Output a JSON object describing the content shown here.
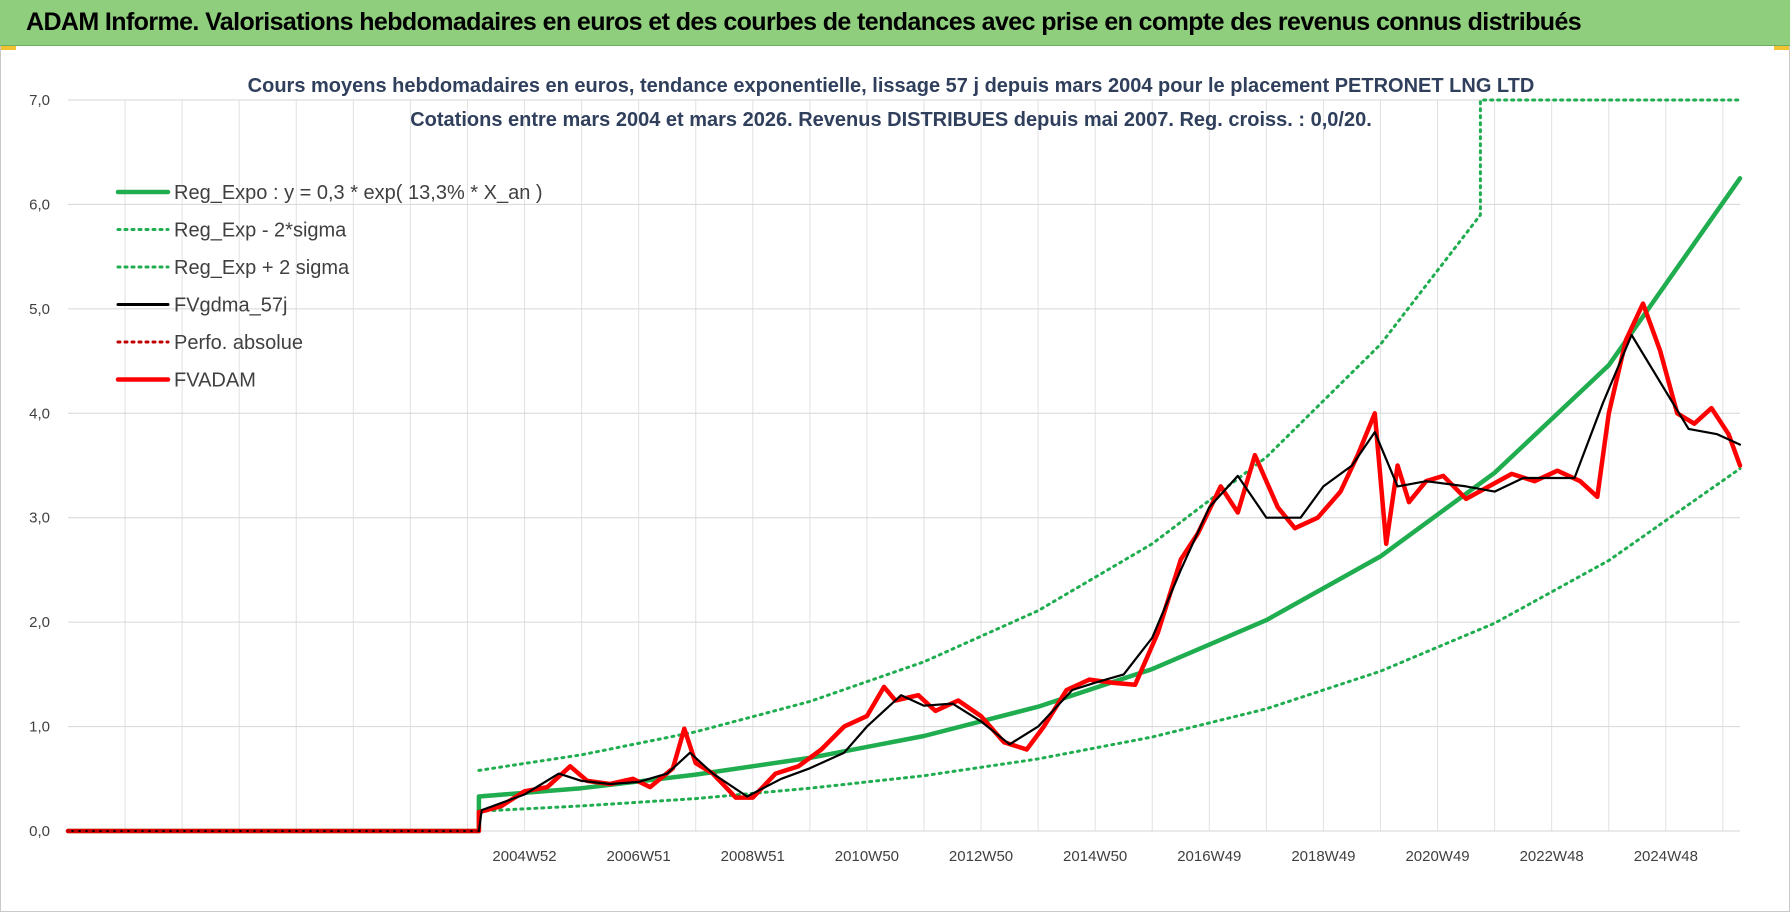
{
  "banner": {
    "title": "ADAM Informe. Valorisations hebdomadaires en euros et des courbes de tendances avec prise en compte des revenus connus distribués",
    "background": "#8fce7c"
  },
  "chart_data": {
    "type": "line",
    "title": "Cours moyens hebdomadaires en euros, tendance exponentielle, lissage 57 j depuis mars 2004 pour le placement PETRONET LNG LTD",
    "subtitle": "Cotations entre mars 2004 et mars 2026. Revenus DISTRIBUES depuis mai 2007. Reg. croiss. : 0,0/20.",
    "xlabel": "",
    "ylabel": "",
    "ylim": [
      0,
      7
    ],
    "xlim": [
      1997.0,
      2026.3
    ],
    "yticks": [
      "0,0",
      "1,0",
      "2,0",
      "3,0",
      "4,0",
      "5,0",
      "6,0",
      "7,0"
    ],
    "xtick_labels": [
      {
        "x": 2005.0,
        "label": "2004W52"
      },
      {
        "x": 2007.0,
        "label": "2006W51"
      },
      {
        "x": 2009.0,
        "label": "2008W51"
      },
      {
        "x": 2011.0,
        "label": "2010W50"
      },
      {
        "x": 2013.0,
        "label": "2012W50"
      },
      {
        "x": 2015.0,
        "label": "2014W50"
      },
      {
        "x": 2017.0,
        "label": "2016W49"
      },
      {
        "x": 2019.0,
        "label": "2018W49"
      },
      {
        "x": 2021.0,
        "label": "2020W49"
      },
      {
        "x": 2023.0,
        "label": "2022W48"
      },
      {
        "x": 2025.0,
        "label": "2024W48"
      }
    ],
    "grid": true,
    "legend_position": "top-left",
    "regression": {
      "a": 0.3,
      "rate": 0.133,
      "x0": 2004.2
    },
    "series": [
      {
        "name": "Reg_Expo : y = 0,3 * exp( 13,3% *  X_an )",
        "color": "#1fad4f",
        "style": "solid-thick",
        "x": [
          1997.0,
          2004.2,
          2004.2,
          2006,
          2008,
          2010,
          2012,
          2014,
          2016,
          2018,
          2020,
          2022,
          2024,
          2026.3
        ],
        "y": [
          0,
          0,
          0.33,
          0.41,
          0.54,
          0.7,
          0.91,
          1.19,
          1.55,
          2.02,
          2.63,
          3.43,
          4.46,
          6.25
        ]
      },
      {
        "name": "Reg_Exp - 2*sigma",
        "color": "#1fad4f",
        "style": "dotted",
        "x": [
          2004.2,
          2006,
          2008,
          2010,
          2012,
          2014,
          2016,
          2018,
          2020,
          2022,
          2024,
          2026.3
        ],
        "y": [
          0.19,
          0.24,
          0.31,
          0.41,
          0.53,
          0.69,
          0.9,
          1.17,
          1.53,
          1.99,
          2.59,
          3.47
        ]
      },
      {
        "name": "Reg_Exp + 2 sigma",
        "color": "#1fad4f",
        "style": "dotted",
        "x": [
          2004.2,
          2006,
          2008,
          2010,
          2012,
          2014,
          2016,
          2018,
          2020,
          2021.75,
          2021.75,
          2026.3
        ],
        "y": [
          0.58,
          0.73,
          0.95,
          1.24,
          1.62,
          2.11,
          2.75,
          3.58,
          4.66,
          5.9,
          7.0,
          7.0
        ]
      },
      {
        "name": "FVgdma_57j",
        "color": "#000000",
        "style": "solid",
        "x": [
          1997.0,
          2004.2,
          2004.25,
          2005.0,
          2005.6,
          2006.0,
          2006.5,
          2007.0,
          2007.5,
          2007.9,
          2008.3,
          2008.9,
          2009.5,
          2010.0,
          2010.6,
          2011.0,
          2011.6,
          2012.0,
          2012.5,
          2013.0,
          2013.5,
          2014.0,
          2014.6,
          2015.0,
          2015.5,
          2016.0,
          2016.5,
          2017.0,
          2017.5,
          2018.0,
          2018.6,
          2019.0,
          2019.5,
          2019.9,
          2020.3,
          2020.8,
          2021.5,
          2022.0,
          2022.5,
          2023.0,
          2023.4,
          2023.9,
          2024.4,
          2024.9,
          2025.4,
          2025.9,
          2026.3
        ],
        "y": [
          0,
          0,
          0.2,
          0.35,
          0.55,
          0.48,
          0.45,
          0.47,
          0.55,
          0.75,
          0.55,
          0.33,
          0.5,
          0.6,
          0.75,
          1.0,
          1.3,
          1.2,
          1.22,
          1.05,
          0.83,
          1.0,
          1.35,
          1.42,
          1.5,
          1.85,
          2.5,
          3.1,
          3.4,
          3.0,
          3.0,
          3.3,
          3.5,
          3.82,
          3.3,
          3.35,
          3.3,
          3.25,
          3.38,
          3.38,
          3.38,
          4.1,
          4.75,
          4.3,
          3.85,
          3.8,
          3.7
        ]
      },
      {
        "name": "Perfo. absolue",
        "color": "#c00000",
        "style": "dotted",
        "x": [
          1997.0,
          2004.2
        ],
        "y": [
          0,
          0
        ]
      },
      {
        "name": "FVADAM",
        "color": "#ff0000",
        "style": "solid-thick",
        "x": [
          1997.0,
          2004.2,
          2004.2,
          2004.6,
          2005.0,
          2005.4,
          2005.8,
          2006.1,
          2006.5,
          2006.9,
          2007.2,
          2007.6,
          2007.8,
          2008.0,
          2008.3,
          2008.7,
          2009.0,
          2009.4,
          2009.8,
          2010.2,
          2010.6,
          2011.0,
          2011.3,
          2011.5,
          2011.9,
          2012.2,
          2012.6,
          2013.0,
          2013.4,
          2013.8,
          2014.1,
          2014.5,
          2014.9,
          2015.3,
          2015.7,
          2016.1,
          2016.5,
          2016.8,
          2017.2,
          2017.5,
          2017.8,
          2018.2,
          2018.5,
          2018.9,
          2019.3,
          2019.6,
          2019.9,
          2020.1,
          2020.3,
          2020.5,
          2020.8,
          2021.1,
          2021.5,
          2021.9,
          2022.3,
          2022.7,
          2023.1,
          2023.5,
          2023.8,
          2024.0,
          2024.3,
          2024.6,
          2024.9,
          2025.2,
          2025.5,
          2025.8,
          2026.1,
          2026.3
        ],
        "y": [
          0,
          0,
          0.18,
          0.24,
          0.38,
          0.42,
          0.62,
          0.48,
          0.45,
          0.5,
          0.42,
          0.6,
          0.98,
          0.65,
          0.55,
          0.32,
          0.32,
          0.55,
          0.62,
          0.78,
          1.0,
          1.1,
          1.38,
          1.25,
          1.3,
          1.15,
          1.25,
          1.1,
          0.85,
          0.78,
          1.0,
          1.35,
          1.45,
          1.42,
          1.4,
          1.9,
          2.6,
          2.85,
          3.3,
          3.05,
          3.6,
          3.1,
          2.9,
          3.0,
          3.25,
          3.6,
          4.0,
          2.75,
          3.5,
          3.15,
          3.35,
          3.4,
          3.18,
          3.3,
          3.42,
          3.35,
          3.45,
          3.35,
          3.2,
          4.0,
          4.7,
          5.05,
          4.6,
          4.0,
          3.9,
          4.05,
          3.8,
          3.5
        ]
      }
    ]
  }
}
